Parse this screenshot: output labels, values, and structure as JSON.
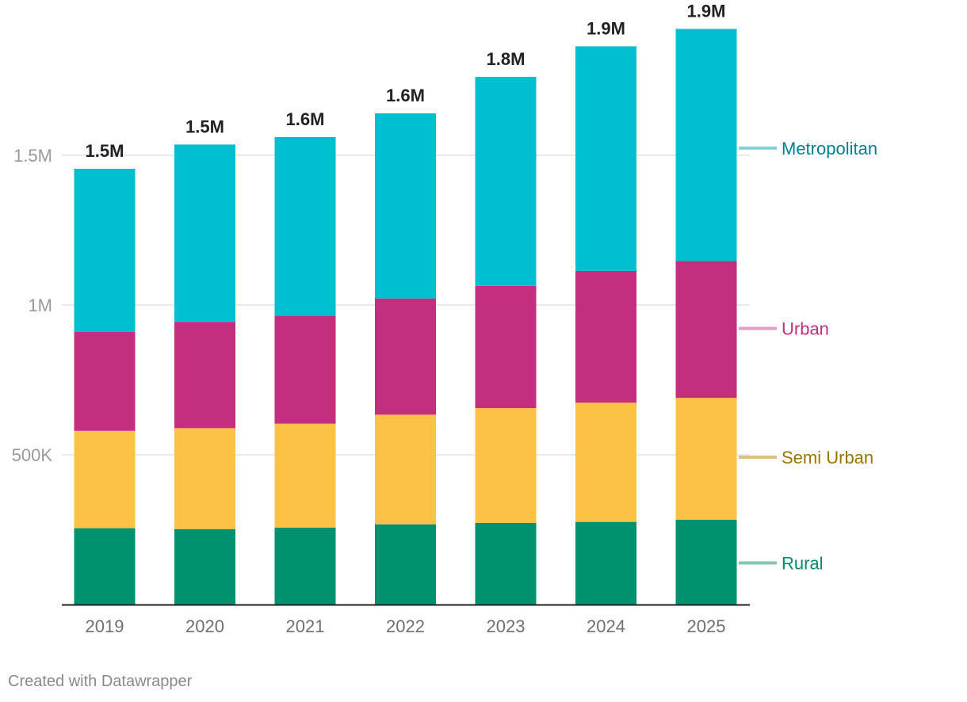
{
  "chart_data": {
    "type": "bar",
    "stacked": true,
    "categories": [
      "2019",
      "2020",
      "2021",
      "2022",
      "2023",
      "2024",
      "2025"
    ],
    "series": [
      {
        "name": "Rural",
        "color": "#00916e",
        "values": [
          255000,
          252000,
          257000,
          268000,
          273000,
          276000,
          283000
        ]
      },
      {
        "name": "Semi Urban",
        "color": "#fcc246",
        "values": [
          325000,
          337000,
          347000,
          366000,
          383000,
          398000,
          407000
        ]
      },
      {
        "name": "Urban",
        "color": "#c42e7e",
        "values": [
          330000,
          355000,
          360000,
          388000,
          408000,
          440000,
          457000
        ]
      },
      {
        "name": "Metropolitan",
        "color": "#00bfd0",
        "values": [
          545000,
          592000,
          597000,
          618000,
          698000,
          750000,
          775000
        ]
      }
    ],
    "totals_labels": [
      "1.5M",
      "1.5M",
      "1.6M",
      "1.6M",
      "1.8M",
      "1.9M",
      "1.9M"
    ],
    "y_ticks": [
      {
        "value": 500000,
        "label": "500K"
      },
      {
        "value": 1000000,
        "label": "1M"
      },
      {
        "value": 1500000,
        "label": "1.5M"
      }
    ],
    "ylim": [
      0,
      1900000
    ],
    "legend_position": "right",
    "legend_text_colors": {
      "Rural": "#008a6a",
      "Semi Urban": "#9a7300",
      "Urban": "#c42e7e",
      "Metropolitan": "#007f8e"
    },
    "legend_line_colors": {
      "Rural": "#80c8b6",
      "Semi Urban": "#dcc27a",
      "Urban": "#e6a0c6",
      "Metropolitan": "#80d2dc"
    },
    "legend_anchor_values": {
      "Rural": 139000,
      "Semi Urban": 492000,
      "Urban": 922000,
      "Metropolitan": 1524000
    }
  },
  "footer": {
    "credit": "Created with Datawrapper"
  }
}
